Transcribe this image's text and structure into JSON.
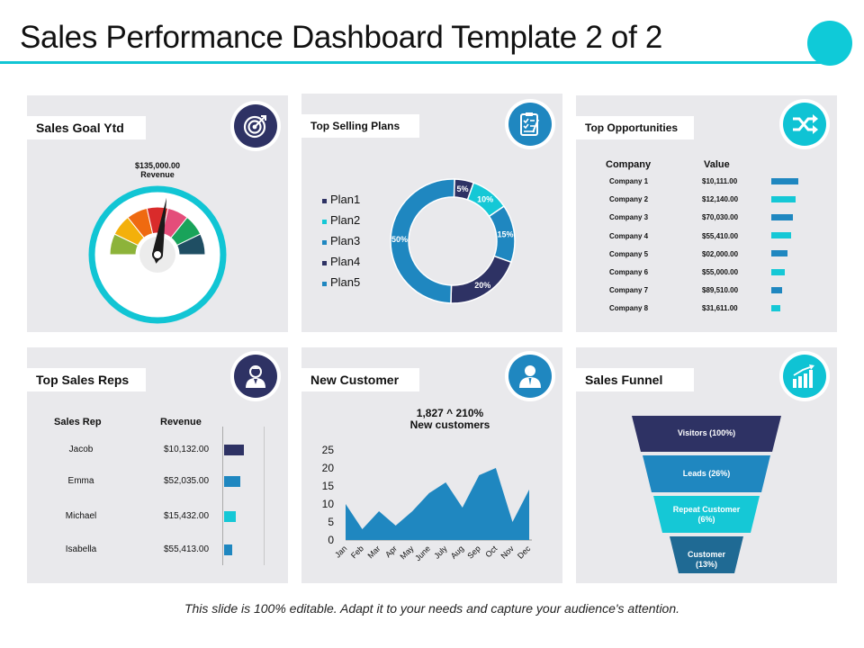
{
  "page": {
    "title": "Sales Performance Dashboard Template 2 of 2",
    "footer": "This slide is 100% editable. Adapt it to your needs and capture your audience's attention."
  },
  "colors": {
    "accent_teal": "#11c5d4",
    "navy": "#2e3264",
    "blue": "#1f87c0",
    "cyan": "#0fcad8",
    "panel_bg": "#e9e9ec"
  },
  "panels": {
    "sales_goal": {
      "label": "Sales Goal Ytd",
      "icon": "target-icon",
      "amount": "$135,000.00",
      "caption": "Revenue"
    },
    "top_selling": {
      "label": "Top Selling Plans",
      "icon": "checklist-icon"
    },
    "top_opportunities": {
      "label": "Top Opportunities",
      "icon": "shuffle-icon",
      "col_company": "Company",
      "col_value": "Value"
    },
    "top_sales_reps": {
      "label": "Top Sales Reps",
      "icon": "user-icon",
      "col_rep": "Sales Rep",
      "col_revenue": "Revenue"
    },
    "new_customer": {
      "label": "New Customer",
      "icon": "person-icon",
      "headline": "1,827 ^ 210%",
      "subline": "New customers"
    },
    "sales_funnel": {
      "label": "Sales Funnel",
      "icon": "bar-growth-icon"
    }
  },
  "chart_data": [
    {
      "type": "pie",
      "title": "Top Selling Plans",
      "categories": [
        "Plan1",
        "Plan2",
        "Plan3",
        "Plan4",
        "Plan5"
      ],
      "values": [
        5,
        10,
        15,
        20,
        50
      ],
      "labels": [
        "5%",
        "10%",
        "15%",
        "20%",
        "50%"
      ],
      "colors": [
        "#2e3264",
        "#15c8d6",
        "#1f87c0",
        "#2e3264",
        "#1f87c0"
      ],
      "legend": "left"
    },
    {
      "type": "table",
      "title": "Top Opportunities",
      "categories": [
        "Company 1",
        "Company 2",
        "Company 3",
        "Company 4",
        "Company 5",
        "Company 6",
        "Company 7",
        "Company 8"
      ],
      "values": [
        "$10,111.00",
        "$12,140.00",
        "$70,030.00",
        "$55,410.00",
        "$02,000.00",
        "$55,000.00",
        "$89,510.00",
        "$31,611.00"
      ],
      "bar_levels": [
        1.0,
        0.9,
        0.8,
        0.72,
        0.6,
        0.5,
        0.4,
        0.32
      ],
      "bar_colors": [
        "#1f87c0",
        "#15c8d6",
        "#1f87c0",
        "#15c8d6",
        "#1f87c0",
        "#15c8d6",
        "#1f87c0",
        "#15c8d6"
      ]
    },
    {
      "type": "table",
      "title": "Top Sales Reps",
      "categories": [
        "Jacob",
        "Emma",
        "Michael",
        "Isabella"
      ],
      "values": [
        "$10,132.00",
        "$52,035.00",
        "$15,432.00",
        "$55,413.00"
      ],
      "bar_levels": [
        1.0,
        0.8,
        0.6,
        0.4
      ],
      "bar_colors": [
        "#2e3264",
        "#1f87c0",
        "#15c8d6",
        "#1f87c0"
      ]
    },
    {
      "type": "area",
      "title": "New Customer",
      "x": [
        "Jan",
        "Feb",
        "Mar",
        "Apr",
        "May",
        "June",
        "July",
        "Aug",
        "Sep",
        "Oct",
        "Nov",
        "Dec"
      ],
      "y": [
        10,
        3,
        8,
        4,
        8,
        13,
        16,
        9,
        18,
        20,
        5,
        14
      ],
      "ylim": [
        0,
        25
      ],
      "yticks": [
        0,
        5,
        10,
        15,
        20,
        25
      ],
      "color": "#1f87c0"
    },
    {
      "type": "bar",
      "title": "Sales Funnel",
      "categories": [
        "Visitors (100%)",
        "Leads (26%)",
        "Repeat Customer (6%)",
        "Customer (13%)"
      ],
      "values": [
        100,
        26,
        6,
        13
      ],
      "colors": [
        "#2e3264",
        "#1f87c0",
        "#15c8d6",
        "#1f6a94"
      ]
    },
    {
      "type": "bar",
      "title": "Sales Goal Ytd",
      "categories": [
        "seg1",
        "seg2",
        "seg3",
        "seg4",
        "seg5",
        "seg6",
        "seg7"
      ],
      "values": [
        1,
        1,
        1,
        1,
        1,
        1,
        1
      ],
      "colors": [
        "#8db33a",
        "#f3b00b",
        "#ef6a10",
        "#d92b2b",
        "#e44d7a",
        "#19a35a",
        "#1f4e63"
      ],
      "needle_value": 0.55
    }
  ]
}
